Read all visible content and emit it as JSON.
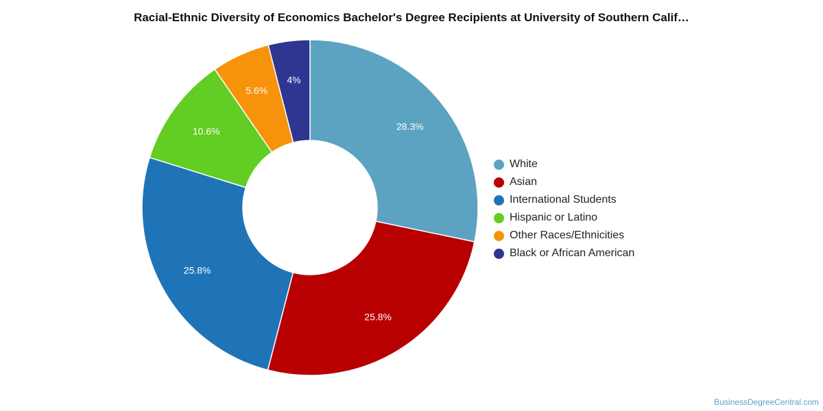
{
  "title": "Racial-Ethnic Diversity of Economics Bachelor's Degree Recipients at University of Southern Calif…",
  "source": "BusinessDegreeCentral.com",
  "chart_data": {
    "type": "pie",
    "title": "Racial-Ethnic Diversity of Economics Bachelor's Degree Recipients at University of Southern Calif…",
    "donut": true,
    "legend_position": "right",
    "series": [
      {
        "name": "White",
        "value": 28.3,
        "label": "28.3%",
        "color": "#5ba3c0"
      },
      {
        "name": "Asian",
        "value": 25.8,
        "label": "25.8%",
        "color": "#b80000"
      },
      {
        "name": "International Students",
        "value": 25.8,
        "label": "25.8%",
        "color": "#1f74b8"
      },
      {
        "name": "Hispanic or Latino",
        "value": 10.6,
        "label": "10.6%",
        "color": "#62cd22"
      },
      {
        "name": "Other Races/Ethnicities",
        "value": 5.6,
        "label": "5.6%",
        "color": "#f7930a"
      },
      {
        "name": "Black or African American",
        "value": 4.0,
        "label": "4%",
        "color": "#2e3691"
      }
    ]
  }
}
